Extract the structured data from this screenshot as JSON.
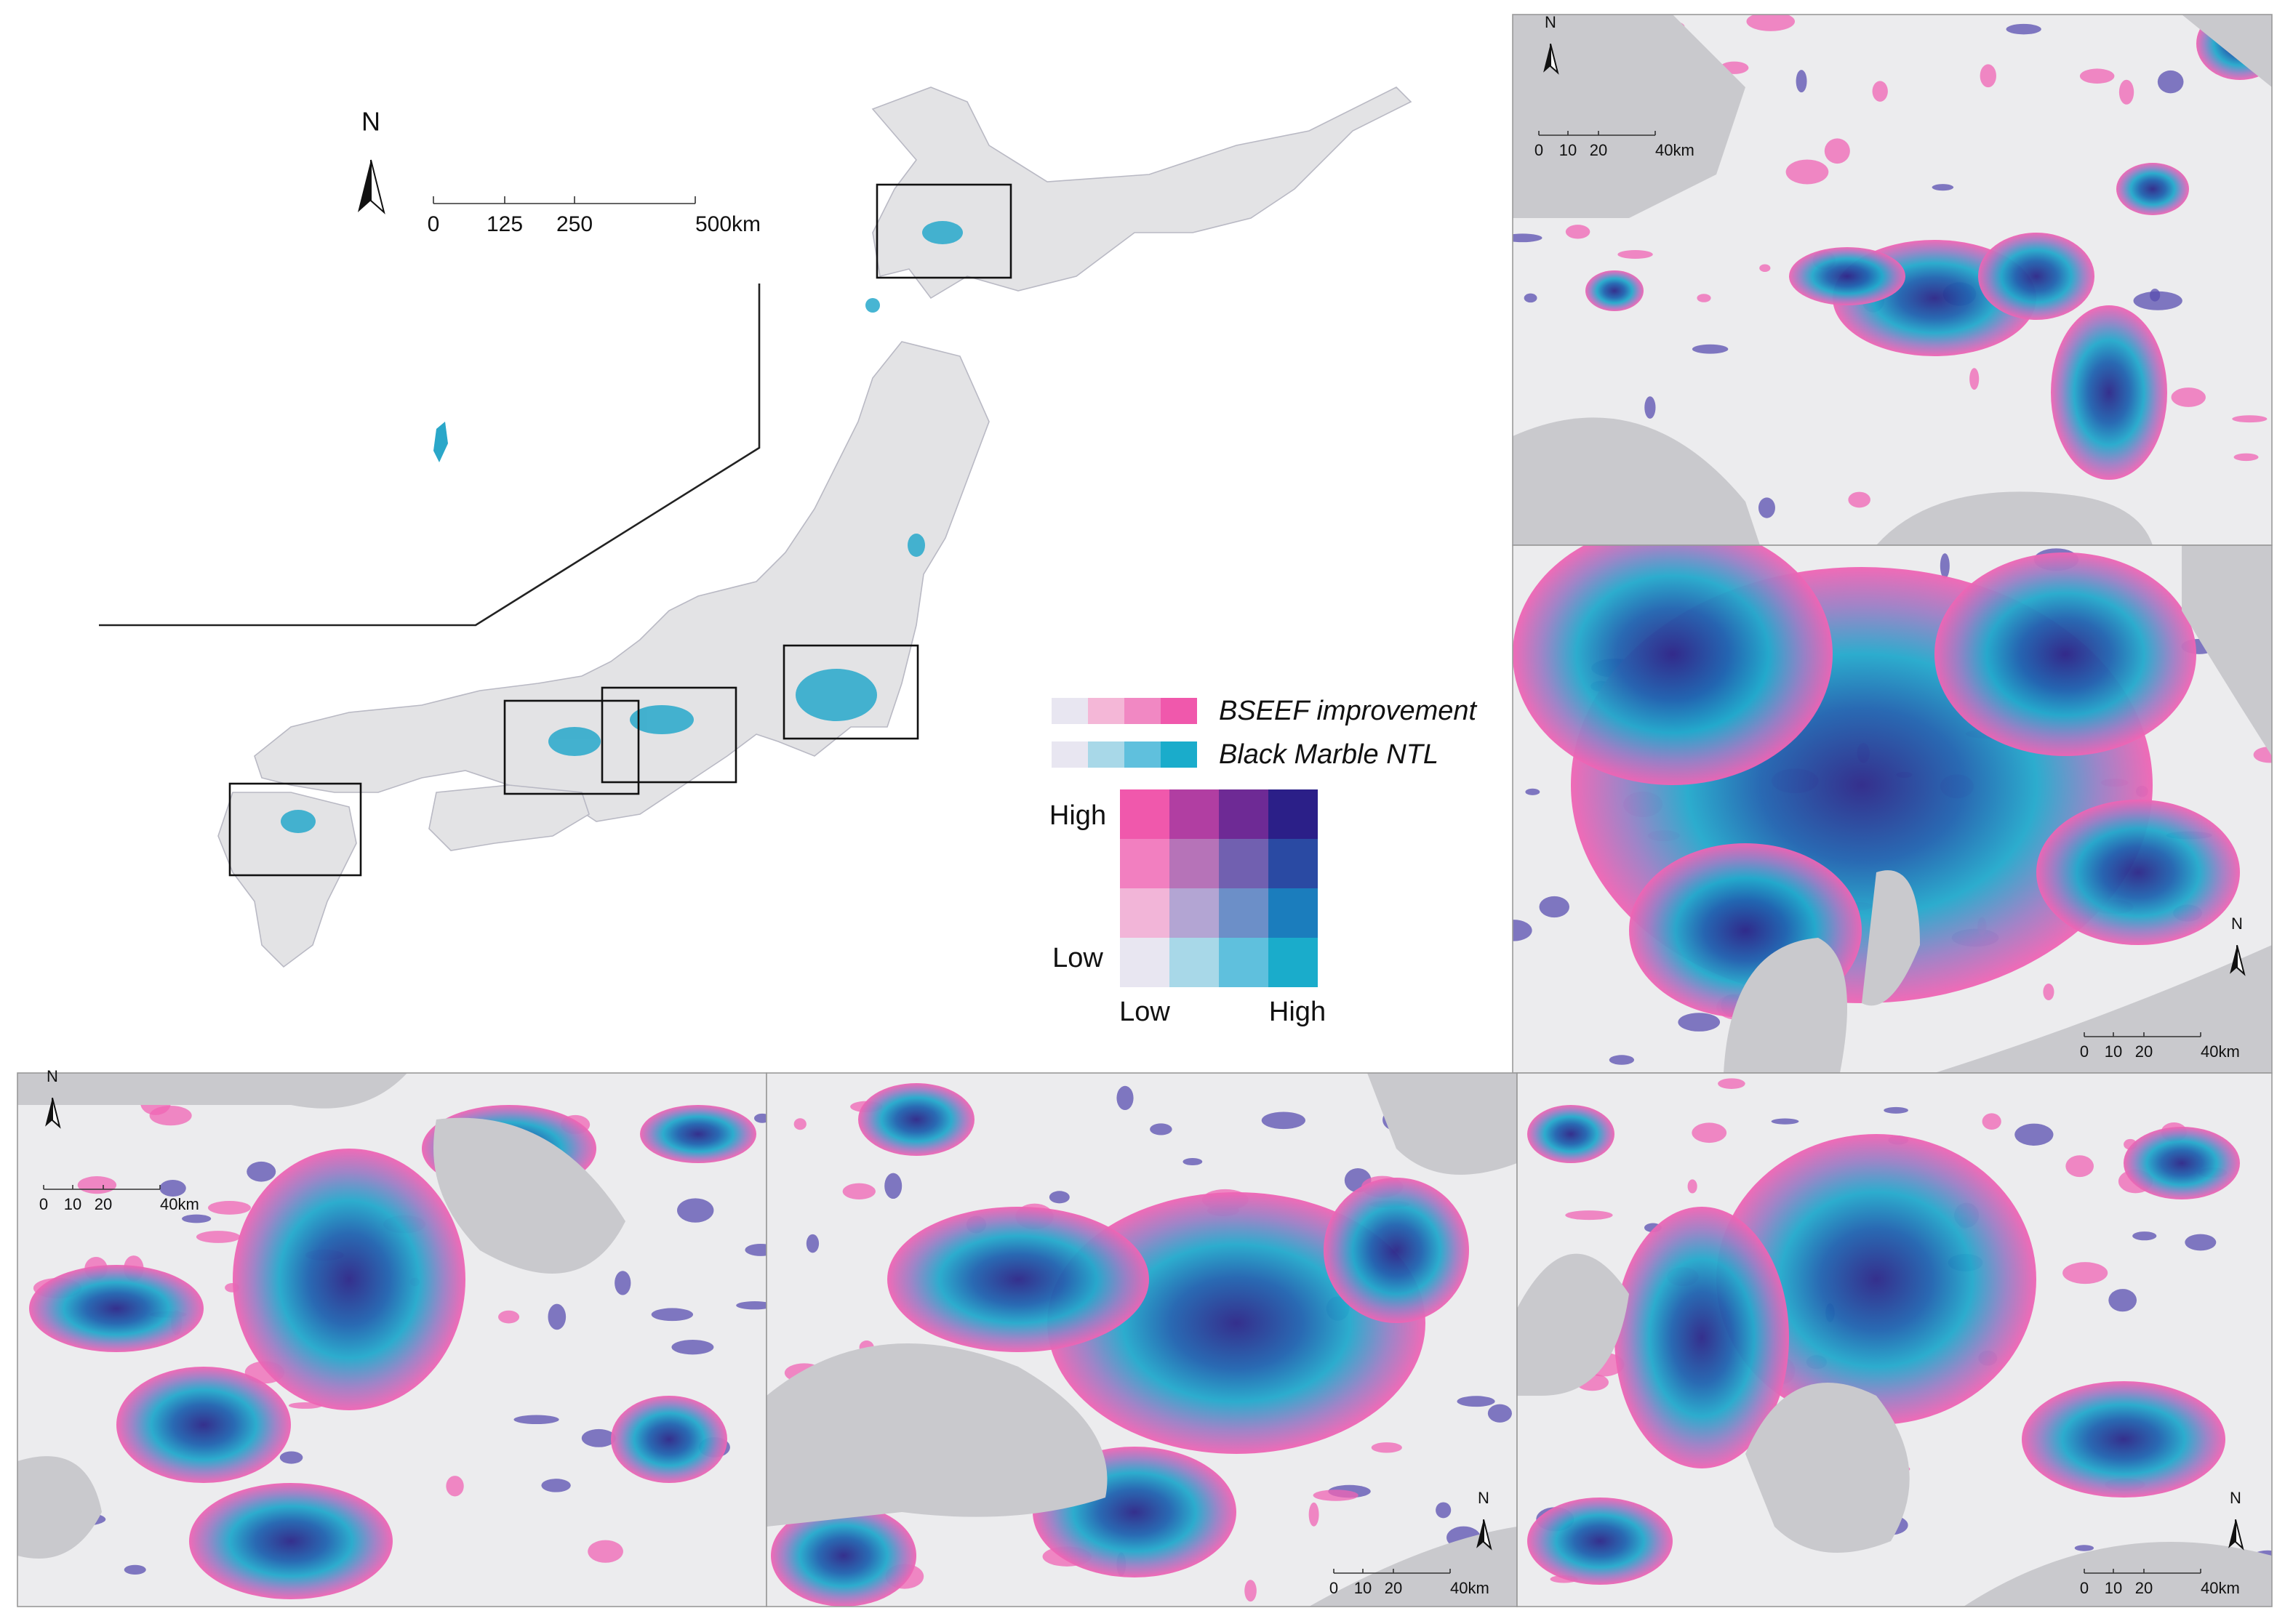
{
  "main_map": {
    "north": "N",
    "scale_labels": [
      "0",
      "125",
      "250",
      "500km"
    ]
  },
  "legend": {
    "rows": [
      "BSEEF improvement",
      "Black Marble NTL"
    ],
    "y_high": "High",
    "y_low": "Low",
    "x_low": "Low",
    "x_high": "High"
  },
  "panels": [
    {
      "north": "N",
      "scale_labels": [
        "0",
        "10",
        "20",
        "40km"
      ]
    },
    {
      "north": "N",
      "scale_labels": [
        "0",
        "10",
        "20",
        "40km"
      ]
    },
    {
      "north": "N",
      "scale_labels": [
        "0",
        "10",
        "20",
        "40km"
      ]
    },
    {
      "north": "N",
      "scale_labels": [
        "0",
        "10",
        "20",
        "40km"
      ]
    },
    {
      "north": "N",
      "scale_labels": [
        "0",
        "10",
        "20",
        "40km"
      ]
    }
  ]
}
